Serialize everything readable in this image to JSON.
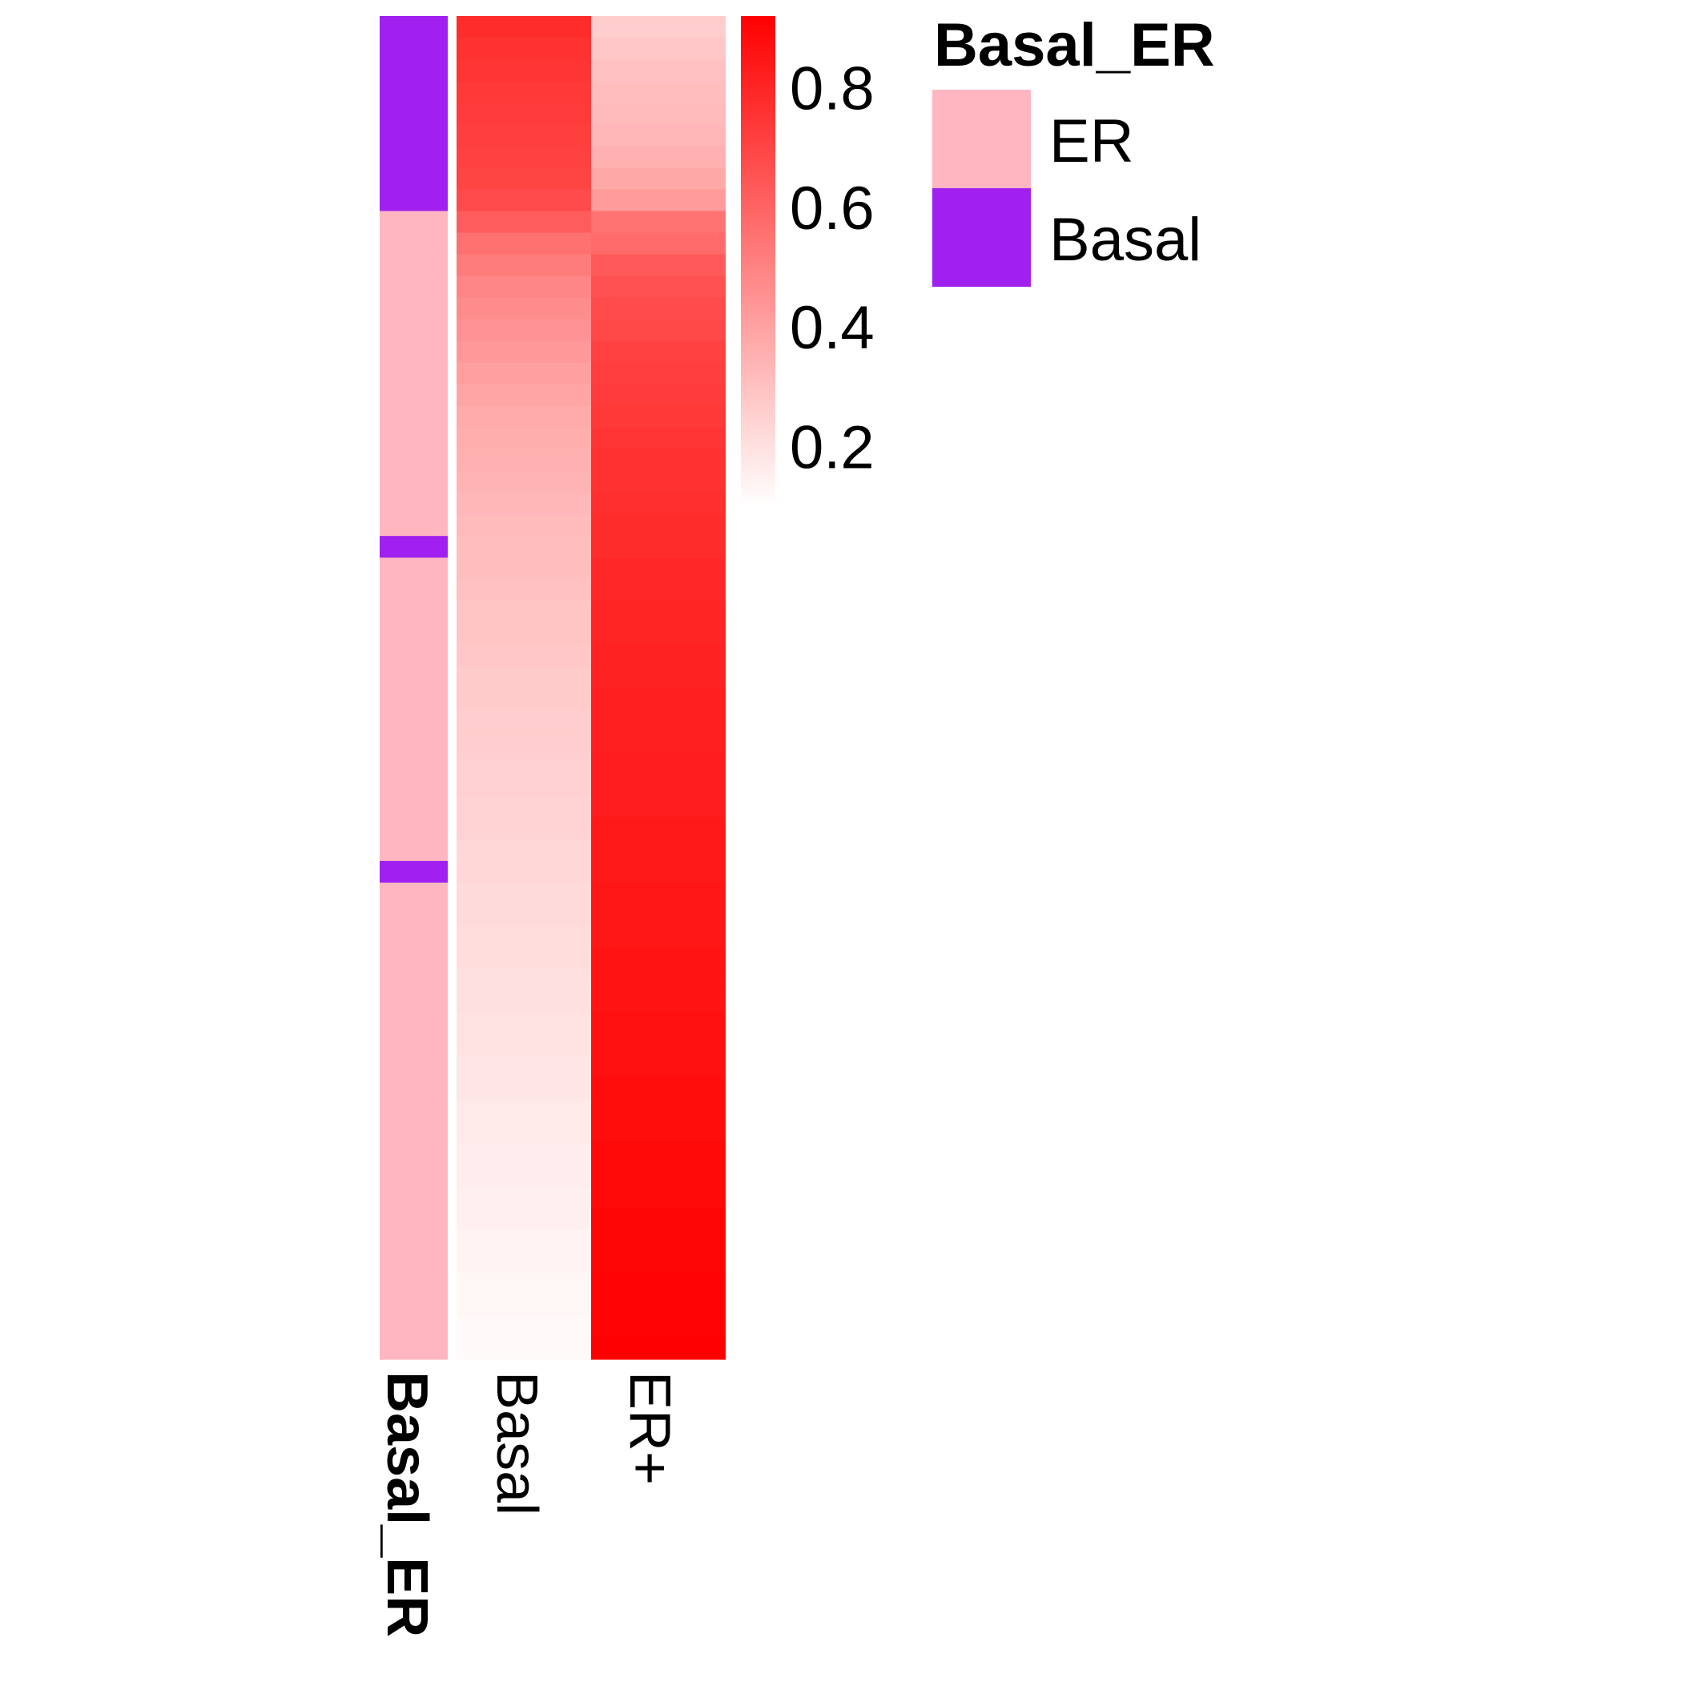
{
  "chart_data": {
    "type": "heatmap",
    "columns": [
      "Basal",
      "ER+"
    ],
    "annotation": {
      "name": "Basal_ER",
      "levels": [
        {
          "label": "ER",
          "color": "#FFB6C1"
        },
        {
          "label": "Basal",
          "color": "#A020F0"
        }
      ]
    },
    "color_scale": {
      "low_color": "#FFFFFF",
      "high_color": "#FF0000",
      "min": 0.1,
      "max": 0.92,
      "ticks": [
        0.8,
        0.6,
        0.4,
        0.2
      ],
      "tick_labels": [
        "0.8",
        "0.6",
        "0.4",
        "0.2"
      ]
    },
    "rows": [
      {
        "group": "Basal",
        "basal": 0.78,
        "er": 0.26
      },
      {
        "group": "Basal",
        "basal": 0.76,
        "er": 0.28
      },
      {
        "group": "Basal",
        "basal": 0.75,
        "er": 0.3
      },
      {
        "group": "Basal",
        "basal": 0.74,
        "er": 0.31
      },
      {
        "group": "Basal",
        "basal": 0.73,
        "er": 0.32
      },
      {
        "group": "Basal",
        "basal": 0.72,
        "er": 0.33
      },
      {
        "group": "Basal",
        "basal": 0.71,
        "er": 0.35
      },
      {
        "group": "Basal",
        "basal": 0.7,
        "er": 0.38
      },
      {
        "group": "Basal",
        "basal": 0.68,
        "er": 0.42
      },
      {
        "group": "ER",
        "basal": 0.62,
        "er": 0.55
      },
      {
        "group": "ER",
        "basal": 0.56,
        "er": 0.58
      },
      {
        "group": "ER",
        "basal": 0.52,
        "er": 0.63
      },
      {
        "group": "ER",
        "basal": 0.49,
        "er": 0.66
      },
      {
        "group": "ER",
        "basal": 0.47,
        "er": 0.68
      },
      {
        "group": "ER",
        "basal": 0.45,
        "er": 0.69
      },
      {
        "group": "ER",
        "basal": 0.43,
        "er": 0.71
      },
      {
        "group": "ER",
        "basal": 0.41,
        "er": 0.72
      },
      {
        "group": "ER",
        "basal": 0.39,
        "er": 0.73
      },
      {
        "group": "ER",
        "basal": 0.37,
        "er": 0.74
      },
      {
        "group": "ER",
        "basal": 0.36,
        "er": 0.75
      },
      {
        "group": "ER",
        "basal": 0.35,
        "er": 0.76
      },
      {
        "group": "ER",
        "basal": 0.34,
        "er": 0.76
      },
      {
        "group": "ER",
        "basal": 0.33,
        "er": 0.77
      },
      {
        "group": "ER",
        "basal": 0.32,
        "er": 0.78
      },
      {
        "group": "Basal",
        "basal": 0.31,
        "er": 0.78
      },
      {
        "group": "ER",
        "basal": 0.31,
        "er": 0.79
      },
      {
        "group": "ER",
        "basal": 0.3,
        "er": 0.79
      },
      {
        "group": "ER",
        "basal": 0.29,
        "er": 0.8
      },
      {
        "group": "ER",
        "basal": 0.29,
        "er": 0.8
      },
      {
        "group": "ER",
        "basal": 0.28,
        "er": 0.81
      },
      {
        "group": "ER",
        "basal": 0.27,
        "er": 0.81
      },
      {
        "group": "ER",
        "basal": 0.27,
        "er": 0.82
      },
      {
        "group": "ER",
        "basal": 0.26,
        "er": 0.82
      },
      {
        "group": "ER",
        "basal": 0.26,
        "er": 0.82
      },
      {
        "group": "ER",
        "basal": 0.25,
        "er": 0.83
      },
      {
        "group": "ER",
        "basal": 0.25,
        "er": 0.83
      },
      {
        "group": "ER",
        "basal": 0.24,
        "er": 0.83
      },
      {
        "group": "ER",
        "basal": 0.24,
        "er": 0.84
      },
      {
        "group": "ER",
        "basal": 0.23,
        "er": 0.84
      },
      {
        "group": "Basal",
        "basal": 0.23,
        "er": 0.84
      },
      {
        "group": "ER",
        "basal": 0.22,
        "er": 0.85
      },
      {
        "group": "ER",
        "basal": 0.22,
        "er": 0.85
      },
      {
        "group": "ER",
        "basal": 0.21,
        "er": 0.85
      },
      {
        "group": "ER",
        "basal": 0.21,
        "er": 0.86
      },
      {
        "group": "ER",
        "basal": 0.2,
        "er": 0.86
      },
      {
        "group": "ER",
        "basal": 0.2,
        "er": 0.86
      },
      {
        "group": "ER",
        "basal": 0.19,
        "er": 0.87
      },
      {
        "group": "ER",
        "basal": 0.19,
        "er": 0.87
      },
      {
        "group": "ER",
        "basal": 0.18,
        "er": 0.87
      },
      {
        "group": "ER",
        "basal": 0.18,
        "er": 0.88
      },
      {
        "group": "ER",
        "basal": 0.17,
        "er": 0.88
      },
      {
        "group": "ER",
        "basal": 0.17,
        "er": 0.88
      },
      {
        "group": "ER",
        "basal": 0.16,
        "er": 0.89
      },
      {
        "group": "ER",
        "basal": 0.16,
        "er": 0.89
      },
      {
        "group": "ER",
        "basal": 0.15,
        "er": 0.89
      },
      {
        "group": "ER",
        "basal": 0.15,
        "er": 0.9
      },
      {
        "group": "ER",
        "basal": 0.14,
        "er": 0.9
      },
      {
        "group": "ER",
        "basal": 0.14,
        "er": 0.9
      },
      {
        "group": "ER",
        "basal": 0.13,
        "er": 0.91
      },
      {
        "group": "ER",
        "basal": 0.13,
        "er": 0.91
      },
      {
        "group": "ER",
        "basal": 0.12,
        "er": 0.91
      },
      {
        "group": "ER",
        "basal": 0.12,
        "er": 0.92
      }
    ],
    "legend_placement": "right",
    "column_labels": [
      "Basal_ER",
      "Basal",
      "ER+"
    ]
  }
}
